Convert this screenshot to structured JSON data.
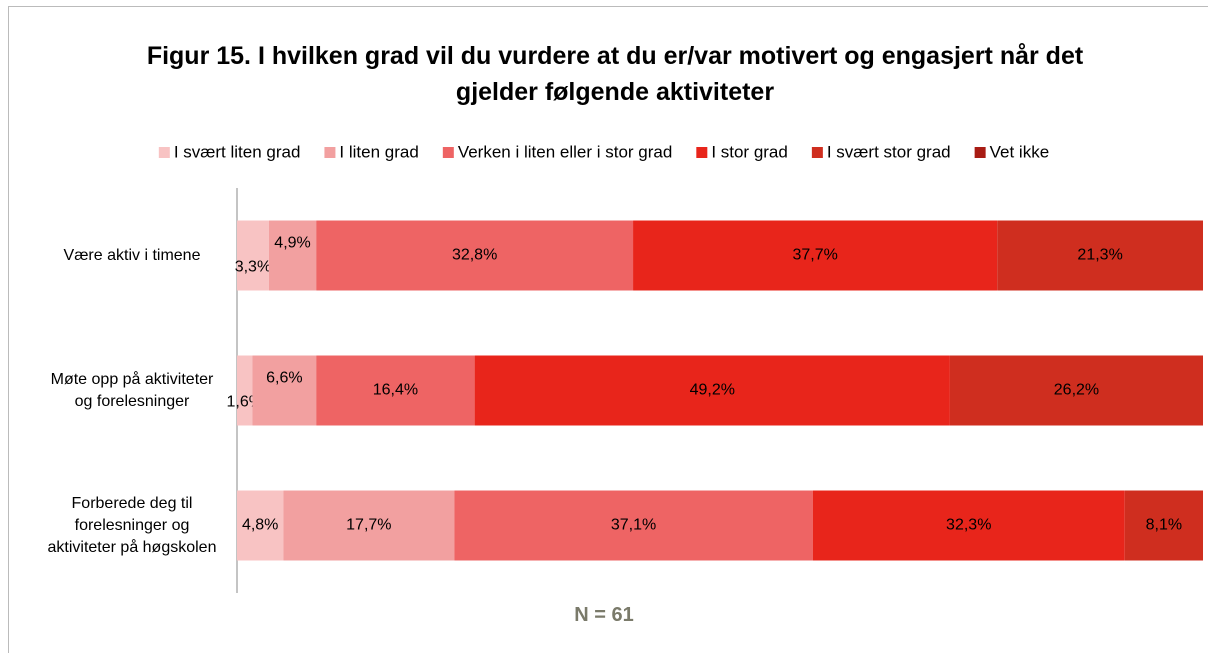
{
  "chart_data": {
    "type": "stacked-hbar",
    "title": "Figur 15. I hvilken grad vil du vurdere at du er/var motivert og engasjert når det gjelder følgende aktiviteter",
    "annotation": "N = 61",
    "categories": [
      "Være aktiv i timene",
      "Møte opp på aktiviteter og forelesninger",
      "Forberede deg til forelesninger og aktiviteter på høgskolen"
    ],
    "xlim": [
      0,
      100
    ],
    "legend": "top",
    "series": [
      {
        "name": "I svært liten grad",
        "color": "#f8c3c3",
        "values": [
          3.3,
          1.6,
          4.8
        ],
        "value_labels": [
          "3,3%",
          "1,6%",
          "4,8%"
        ]
      },
      {
        "name": "I liten grad",
        "color": "#f2a0a0",
        "values": [
          4.9,
          6.6,
          17.7
        ],
        "value_labels": [
          "4,9%",
          "6,6%",
          "17,7%"
        ]
      },
      {
        "name": "Verken i liten eller i stor grad",
        "color": "#ee6464",
        "values": [
          32.8,
          16.4,
          37.1
        ],
        "value_labels": [
          "32,8%",
          "16,4%",
          "37,1%"
        ]
      },
      {
        "name": "I stor grad",
        "color": "#e8251b",
        "values": [
          37.7,
          49.2,
          32.3
        ],
        "value_labels": [
          "37,7%",
          "49,2%",
          "32,3%"
        ]
      },
      {
        "name": "I svært stor grad",
        "color": "#cf2e1f",
        "values": [
          21.3,
          26.2,
          8.1
        ],
        "value_labels": [
          "21,3%",
          "26,2%",
          "8,1%"
        ]
      },
      {
        "name": "Vet ikke",
        "color": "#a81c14",
        "values": [
          0,
          0,
          0
        ]
      }
    ]
  }
}
